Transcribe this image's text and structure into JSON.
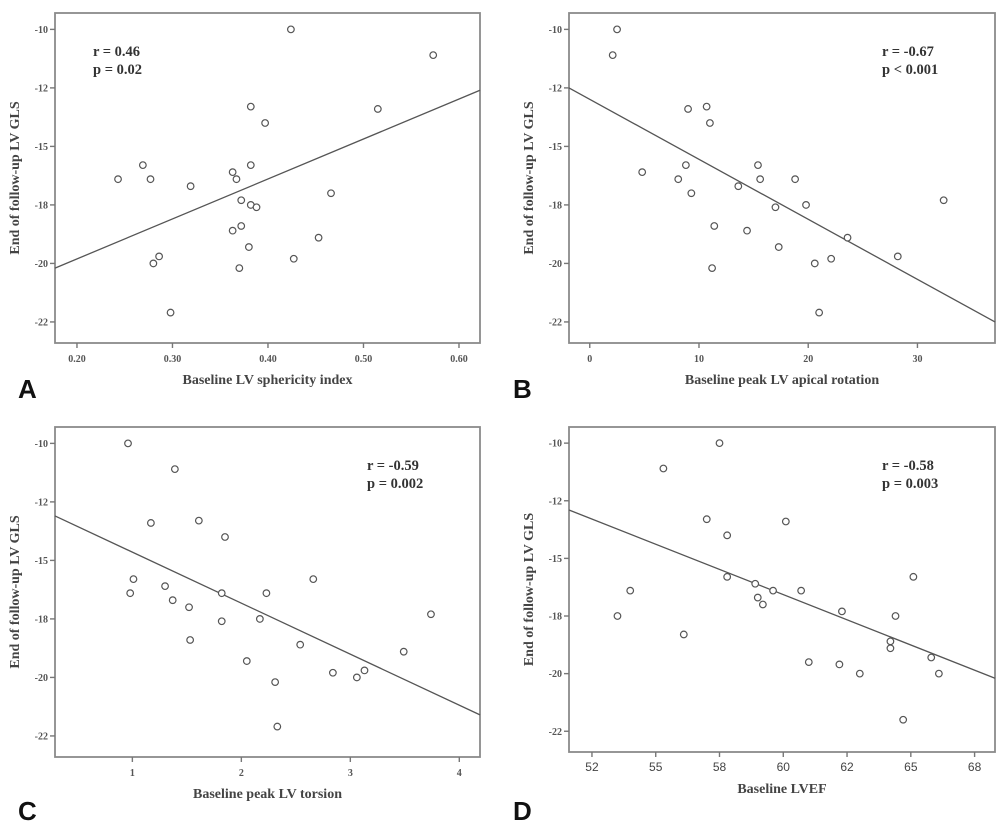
{
  "chart_data": [
    {
      "panel": "A",
      "type": "scatter",
      "title": "",
      "xlabel": "Baseline LV sphericity index",
      "ylabel": "End of follow-up LV GLS",
      "xlim": [
        0.177,
        0.622
      ],
      "ylim": [
        -23.4,
        -9.3
      ],
      "x_ticks": [
        0.2,
        0.3,
        0.4,
        0.5,
        0.6
      ],
      "x_tick_labels": [
        "0.20",
        "0.30",
        "0.40",
        "0.50",
        "0.60"
      ],
      "y_ticks": [
        -10,
        -12.5,
        -15,
        -17.5,
        -20,
        -22.5
      ],
      "y_tick_labels": [
        "-10",
        "-12",
        "-15",
        "-18",
        "-20",
        "-22"
      ],
      "annotation": [
        "r = 0.46",
        "p = 0.02"
      ],
      "annotation_position": "top-left",
      "grid": false,
      "fit_line": {
        "x": [
          0.177,
          0.622
        ],
        "y": [
          -20.2,
          -12.6
        ]
      },
      "points": [
        [
          0.424,
          -10.0
        ],
        [
          0.573,
          -11.1
        ],
        [
          0.382,
          -13.3
        ],
        [
          0.515,
          -13.4
        ],
        [
          0.397,
          -14.0
        ],
        [
          0.269,
          -15.8
        ],
        [
          0.382,
          -15.8
        ],
        [
          0.243,
          -16.4
        ],
        [
          0.277,
          -16.4
        ],
        [
          0.363,
          -16.1
        ],
        [
          0.367,
          -16.4
        ],
        [
          0.319,
          -16.7
        ],
        [
          0.466,
          -17.0
        ],
        [
          0.372,
          -17.3
        ],
        [
          0.382,
          -17.5
        ],
        [
          0.388,
          -17.6
        ],
        [
          0.363,
          -18.6
        ],
        [
          0.372,
          -18.4
        ],
        [
          0.453,
          -18.9
        ],
        [
          0.38,
          -19.3
        ],
        [
          0.286,
          -19.7
        ],
        [
          0.28,
          -20.0
        ],
        [
          0.427,
          -19.8
        ],
        [
          0.37,
          -20.2
        ],
        [
          0.298,
          -22.1
        ]
      ]
    },
    {
      "panel": "B",
      "type": "scatter",
      "title": "",
      "xlabel": "Baseline peak LV apical rotation",
      "ylabel": "End of follow-up LV GLS",
      "xlim": [
        -1.9,
        37.1
      ],
      "ylim": [
        -23.4,
        -9.3
      ],
      "x_ticks": [
        0,
        10,
        20,
        30
      ],
      "x_tick_labels": [
        "0",
        "10",
        "20",
        "30"
      ],
      "y_ticks": [
        -10,
        -12.5,
        -15,
        -17.5,
        -20,
        -22.5
      ],
      "y_tick_labels": [
        "-10",
        "-12",
        "-15",
        "-18",
        "-20",
        "-22"
      ],
      "annotation": [
        "r = -0.67",
        "p < 0.001"
      ],
      "annotation_position": "top-right",
      "grid": false,
      "fit_line": {
        "x": [
          -1.9,
          37.1
        ],
        "y": [
          -12.5,
          -22.5
        ]
      },
      "points": [
        [
          2.5,
          -10.0
        ],
        [
          2.1,
          -11.1
        ],
        [
          9.0,
          -13.4
        ],
        [
          10.7,
          -13.3
        ],
        [
          11.0,
          -14.0
        ],
        [
          4.8,
          -16.1
        ],
        [
          8.8,
          -15.8
        ],
        [
          8.1,
          -16.4
        ],
        [
          9.3,
          -17.0
        ],
        [
          15.4,
          -15.8
        ],
        [
          15.6,
          -16.4
        ],
        [
          13.6,
          -16.7
        ],
        [
          18.8,
          -16.4
        ],
        [
          17.0,
          -17.6
        ],
        [
          19.8,
          -17.5
        ],
        [
          32.4,
          -17.3
        ],
        [
          11.4,
          -18.4
        ],
        [
          14.4,
          -18.6
        ],
        [
          17.3,
          -19.3
        ],
        [
          23.6,
          -18.9
        ],
        [
          28.2,
          -19.7
        ],
        [
          20.6,
          -20.0
        ],
        [
          22.1,
          -19.8
        ],
        [
          11.2,
          -20.2
        ],
        [
          21.0,
          -22.1
        ]
      ]
    },
    {
      "panel": "C",
      "type": "scatter",
      "title": "",
      "xlabel": "Baseline peak LV torsion",
      "ylabel": "End of follow-up LV GLS",
      "xlim": [
        0.29,
        4.19
      ],
      "ylim": [
        -23.4,
        -9.3
      ],
      "x_ticks": [
        1,
        2,
        3,
        4
      ],
      "x_tick_labels": [
        "1",
        "2",
        "3",
        "4"
      ],
      "y_ticks": [
        -10,
        -12.5,
        -15,
        -17.5,
        -20,
        -22.5
      ],
      "y_tick_labels": [
        "-10",
        "-12",
        "-15",
        "-18",
        "-20",
        "-22"
      ],
      "annotation": [
        "r = -0.59",
        "p = 0.002"
      ],
      "annotation_position": "top-right",
      "grid": false,
      "fit_line": {
        "x": [
          0.29,
          4.19
        ],
        "y": [
          -13.1,
          -21.6
        ]
      },
      "points": [
        [
          0.96,
          -10.0
        ],
        [
          1.39,
          -11.1
        ],
        [
          1.17,
          -13.4
        ],
        [
          1.61,
          -13.3
        ],
        [
          1.85,
          -14.0
        ],
        [
          1.01,
          -15.8
        ],
        [
          0.98,
          -16.4
        ],
        [
          1.3,
          -16.1
        ],
        [
          1.37,
          -16.7
        ],
        [
          1.52,
          -17.0
        ],
        [
          1.82,
          -16.4
        ],
        [
          2.23,
          -16.4
        ],
        [
          2.66,
          -15.8
        ],
        [
          1.82,
          -17.6
        ],
        [
          2.17,
          -17.5
        ],
        [
          1.53,
          -18.4
        ],
        [
          2.54,
          -18.6
        ],
        [
          3.74,
          -17.3
        ],
        [
          3.49,
          -18.9
        ],
        [
          2.05,
          -19.3
        ],
        [
          2.84,
          -19.8
        ],
        [
          3.13,
          -19.7
        ],
        [
          3.06,
          -20.0
        ],
        [
          2.31,
          -20.2
        ],
        [
          2.33,
          -22.1
        ]
      ]
    },
    {
      "panel": "D",
      "type": "scatter",
      "title": "",
      "xlabel": "Baseline LVEF",
      "ylabel": "End of follow-up LV GLS",
      "xlim": [
        51.6,
        68.3
      ],
      "ylim": [
        -23.4,
        -9.3
      ],
      "x_ticks": [
        52.5,
        55,
        57.5,
        60,
        62.5,
        65,
        67.5
      ],
      "x_tick_labels": [
        "52",
        "55",
        "58",
        "60",
        "62",
        "65",
        "68"
      ],
      "y_ticks": [
        -10,
        -12.5,
        -15,
        -17.5,
        -20,
        -22.5
      ],
      "y_tick_labels": [
        "-10",
        "-12",
        "-15",
        "-18",
        "-20",
        "-22"
      ],
      "annotation": [
        "r = -0.58",
        "p = 0.003"
      ],
      "annotation_position": "top-right",
      "grid": false,
      "fit_line": {
        "x": [
          51.6,
          68.3
        ],
        "y": [
          -12.9,
          -20.2
        ]
      },
      "points": [
        [
          57.5,
          -10.0
        ],
        [
          55.3,
          -11.1
        ],
        [
          57.0,
          -13.3
        ],
        [
          60.1,
          -13.4
        ],
        [
          57.8,
          -14.0
        ],
        [
          57.8,
          -15.8
        ],
        [
          54.0,
          -16.4
        ],
        [
          58.9,
          -16.1
        ],
        [
          59.0,
          -16.7
        ],
        [
          59.2,
          -17.0
        ],
        [
          59.6,
          -16.4
        ],
        [
          60.7,
          -16.4
        ],
        [
          65.1,
          -15.8
        ],
        [
          53.5,
          -17.5
        ],
        [
          56.1,
          -18.3
        ],
        [
          62.3,
          -17.3
        ],
        [
          64.4,
          -17.5
        ],
        [
          64.2,
          -18.6
        ],
        [
          64.2,
          -18.9
        ],
        [
          65.8,
          -19.3
        ],
        [
          66.1,
          -20.0
        ],
        [
          61.0,
          -19.5
        ],
        [
          62.2,
          -19.6
        ],
        [
          63.0,
          -20.0
        ],
        [
          64.7,
          -22.0
        ]
      ]
    }
  ]
}
